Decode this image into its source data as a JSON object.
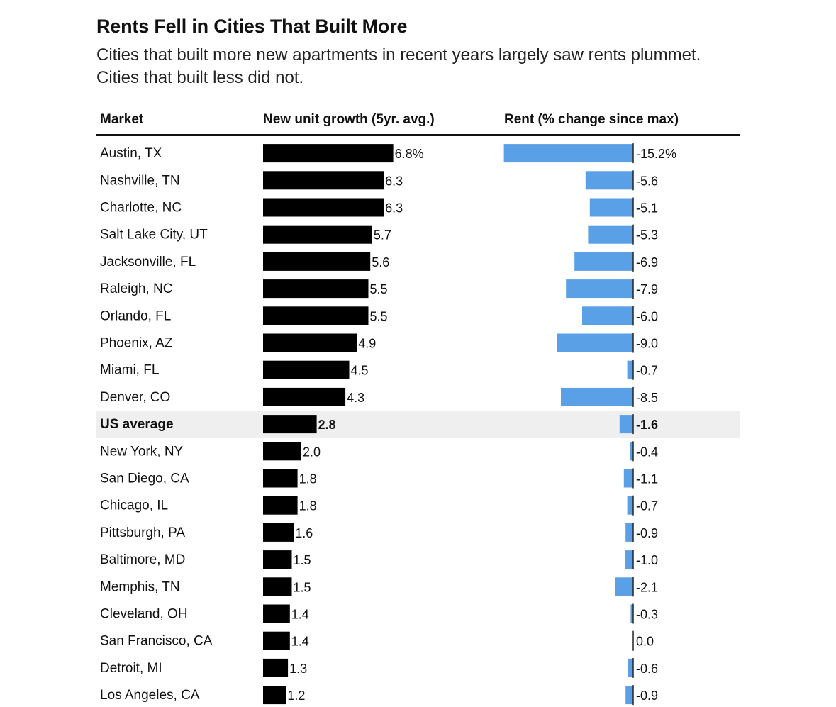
{
  "chart_data": {
    "type": "bar",
    "title": "Rents Fell in Cities That Built More",
    "subtitle": "Cities that built more new apartments in recent years largely saw rents plummet. Cities that built less did not.",
    "columns": {
      "market": "Market",
      "growth": "New unit growth (5yr. avg.)",
      "rent": "Rent (% change since max)"
    },
    "highlight_row": "US average",
    "colors": {
      "growth_bar": "#000000",
      "rent_bar": "#5aa0e6",
      "highlight_bg": "#efefef"
    },
    "rows": [
      {
        "market": "Austin, TX",
        "growth": 6.8,
        "growth_label": "6.8%",
        "rent": -15.2,
        "rent_label": "-15.2%"
      },
      {
        "market": "Nashville, TN",
        "growth": 6.3,
        "growth_label": "6.3",
        "rent": -5.6,
        "rent_label": "-5.6"
      },
      {
        "market": "Charlotte, NC",
        "growth": 6.3,
        "growth_label": "6.3",
        "rent": -5.1,
        "rent_label": "-5.1"
      },
      {
        "market": "Salt Lake City, UT",
        "growth": 5.7,
        "growth_label": "5.7",
        "rent": -5.3,
        "rent_label": "-5.3"
      },
      {
        "market": "Jacksonville, FL",
        "growth": 5.6,
        "growth_label": "5.6",
        "rent": -6.9,
        "rent_label": "-6.9"
      },
      {
        "market": "Raleigh, NC",
        "growth": 5.5,
        "growth_label": "5.5",
        "rent": -7.9,
        "rent_label": "-7.9"
      },
      {
        "market": "Orlando, FL",
        "growth": 5.5,
        "growth_label": "5.5",
        "rent": -6.0,
        "rent_label": "-6.0"
      },
      {
        "market": "Phoenix, AZ",
        "growth": 4.9,
        "growth_label": "4.9",
        "rent": -9.0,
        "rent_label": "-9.0"
      },
      {
        "market": "Miami, FL",
        "growth": 4.5,
        "growth_label": "4.5",
        "rent": -0.7,
        "rent_label": "-0.7"
      },
      {
        "market": "Denver, CO",
        "growth": 4.3,
        "growth_label": "4.3",
        "rent": -8.5,
        "rent_label": "-8.5"
      },
      {
        "market": "US average",
        "growth": 2.8,
        "growth_label": "2.8",
        "rent": -1.6,
        "rent_label": "-1.6"
      },
      {
        "market": "New York, NY",
        "growth": 2.0,
        "growth_label": "2.0",
        "rent": -0.4,
        "rent_label": "-0.4"
      },
      {
        "market": "San Diego, CA",
        "growth": 1.8,
        "growth_label": "1.8",
        "rent": -1.1,
        "rent_label": "-1.1"
      },
      {
        "market": "Chicago, IL",
        "growth": 1.8,
        "growth_label": "1.8",
        "rent": -0.7,
        "rent_label": "-0.7"
      },
      {
        "market": "Pittsburgh, PA",
        "growth": 1.6,
        "growth_label": "1.6",
        "rent": -0.9,
        "rent_label": "-0.9"
      },
      {
        "market": "Baltimore, MD",
        "growth": 1.5,
        "growth_label": "1.5",
        "rent": -1.0,
        "rent_label": "-1.0"
      },
      {
        "market": "Memphis, TN",
        "growth": 1.5,
        "growth_label": "1.5",
        "rent": -2.1,
        "rent_label": "-2.1"
      },
      {
        "market": "Cleveland, OH",
        "growth": 1.4,
        "growth_label": "1.4",
        "rent": -0.3,
        "rent_label": "-0.3"
      },
      {
        "market": "San Francisco, CA",
        "growth": 1.4,
        "growth_label": "1.4",
        "rent": 0.0,
        "rent_label": "0.0"
      },
      {
        "market": "Detroit, MI",
        "growth": 1.3,
        "growth_label": "1.3",
        "rent": -0.6,
        "rent_label": "-0.6"
      },
      {
        "market": "Los Angeles, CA",
        "growth": 1.2,
        "growth_label": "1.2",
        "rent": -0.9,
        "rent_label": "-0.9"
      }
    ]
  }
}
